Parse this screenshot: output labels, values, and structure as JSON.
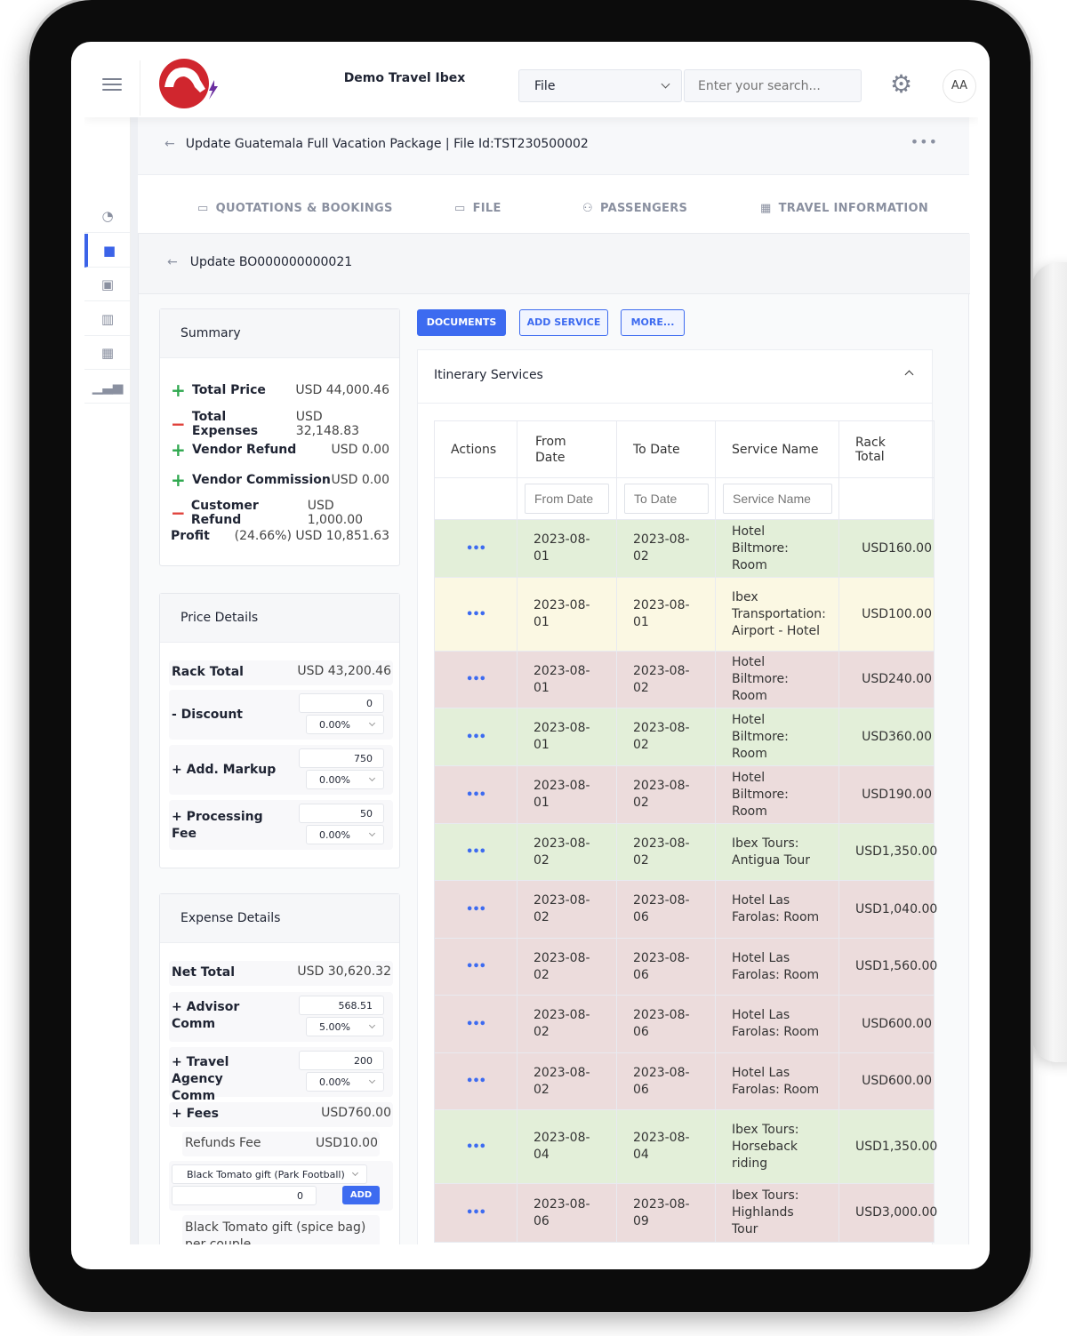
{
  "header": {
    "app_title": "Demo Travel Ibex",
    "file_select": "File",
    "search_placeholder": "Enter your search...",
    "avatar": "AA",
    "brand_color": "#3d6bf0",
    "logo_color": "#d0262e"
  },
  "sidebar": {
    "items": [
      {
        "icon": "dashboard-icon"
      },
      {
        "icon": "folder-icon",
        "active": true
      },
      {
        "icon": "contacts-icon"
      },
      {
        "icon": "briefcase-icon"
      },
      {
        "icon": "building-icon"
      },
      {
        "icon": "chart-icon"
      }
    ]
  },
  "breadcrumb": {
    "title": "Update Guatemala Full Vacation Package | File Id:TST230500002"
  },
  "tabs": [
    {
      "label": "QUOTATIONS & BOOKINGS",
      "icon": "book-icon"
    },
    {
      "label": "FILE",
      "icon": "folder-icon"
    },
    {
      "label": "PASSENGERS",
      "icon": "users-icon"
    },
    {
      "label": "TRAVEL INFORMATION",
      "icon": "calendar-icon"
    }
  ],
  "panel": {
    "title": "Update BO000000000021"
  },
  "summary": {
    "title": "Summary",
    "rows": [
      {
        "sign": "+",
        "label": "Total Price",
        "value": "USD 44,000.46"
      },
      {
        "sign": "-",
        "label": "Total Expenses",
        "value": "USD 32,148.83"
      },
      {
        "sign": "+",
        "label": "Vendor Refund",
        "value": "USD 0.00"
      },
      {
        "sign": "+",
        "label": "Vendor Commission",
        "value": "USD 0.00"
      },
      {
        "sign": "-",
        "label": "Customer Refund",
        "value": "USD 1,000.00"
      },
      {
        "sign": "",
        "label": "Profit",
        "value": "(24.66%) USD 10,851.63"
      }
    ]
  },
  "price_details": {
    "title": "Price Details",
    "rack_total_label": "Rack Total",
    "rack_total": "USD 43,200.46",
    "rows": [
      {
        "label": "- Discount",
        "amount": "0",
        "percent": "0.00%"
      },
      {
        "label": "+ Add. Markup",
        "amount": "750",
        "percent": "0.00%"
      },
      {
        "label": "+ Processing Fee",
        "amount": "50",
        "percent": "0.00%"
      }
    ]
  },
  "expense_details": {
    "title": "Expense Details",
    "net_total_label": "Net Total",
    "net_total": "USD 30,620.32",
    "rows": [
      {
        "label": "+ Advisor Comm",
        "amount": "568.51",
        "percent": "5.00%"
      },
      {
        "label": "+ Travel Agency Comm",
        "amount": "200",
        "percent": "0.00%"
      }
    ],
    "fees_label": "+ Fees",
    "fees": "USD760.00",
    "refunds_fee_label": "Refunds Fee",
    "refunds_fee": "USD10.00",
    "gift_select": "Black Tomato gift (Park Football)",
    "gift_qty": "0",
    "add_label": "ADD",
    "gift_item": "Black Tomato gift (spice bag) per couple"
  },
  "buttons": {
    "documents": "DOCUMENTS",
    "add_service": "ADD SERVICE",
    "more": "MORE..."
  },
  "itinerary": {
    "title": "Itinerary Services",
    "columns": [
      "Actions",
      "From Date",
      "To Date",
      "Service Name",
      "Rack Total"
    ],
    "filters": {
      "from": "From Date",
      "to": "To Date",
      "service": "Service Name"
    },
    "rows": [
      {
        "status": "green",
        "from": "2023-08-01",
        "to": "2023-08-02",
        "service": "Hotel Biltmore: Room",
        "rack": "USD160.00"
      },
      {
        "status": "yellow",
        "from": "2023-08-01",
        "to": "2023-08-01",
        "service": "Ibex Transportation: Airport - Hotel",
        "rack": "USD100.00"
      },
      {
        "status": "red",
        "from": "2023-08-01",
        "to": "2023-08-02",
        "service": "Hotel Biltmore: Room",
        "rack": "USD240.00"
      },
      {
        "status": "green",
        "from": "2023-08-01",
        "to": "2023-08-02",
        "service": "Hotel Biltmore: Room",
        "rack": "USD360.00"
      },
      {
        "status": "red",
        "from": "2023-08-01",
        "to": "2023-08-02",
        "service": "Hotel Biltmore: Room",
        "rack": "USD190.00"
      },
      {
        "status": "green",
        "from": "2023-08-02",
        "to": "2023-08-02",
        "service": "Ibex Tours: Antigua Tour",
        "rack": "USD1,350.00"
      },
      {
        "status": "red",
        "from": "2023-08-02",
        "to": "2023-08-06",
        "service": "Hotel Las Farolas: Room",
        "rack": "USD1,040.00"
      },
      {
        "status": "red",
        "from": "2023-08-02",
        "to": "2023-08-06",
        "service": "Hotel Las Farolas: Room",
        "rack": "USD1,560.00"
      },
      {
        "status": "red",
        "from": "2023-08-02",
        "to": "2023-08-06",
        "service": "Hotel Las Farolas: Room",
        "rack": "USD600.00"
      },
      {
        "status": "red",
        "from": "2023-08-02",
        "to": "2023-08-06",
        "service": "Hotel Las Farolas: Room",
        "rack": "USD600.00"
      },
      {
        "status": "green",
        "from": "2023-08-04",
        "to": "2023-08-04",
        "service": "Ibex Tours: Horseback riding",
        "rack": "USD1,350.00"
      },
      {
        "status": "red",
        "from": "2023-08-06",
        "to": "2023-08-09",
        "service": "Ibex Tours: Highlands Tour",
        "rack": "USD3,000.00"
      }
    ]
  }
}
